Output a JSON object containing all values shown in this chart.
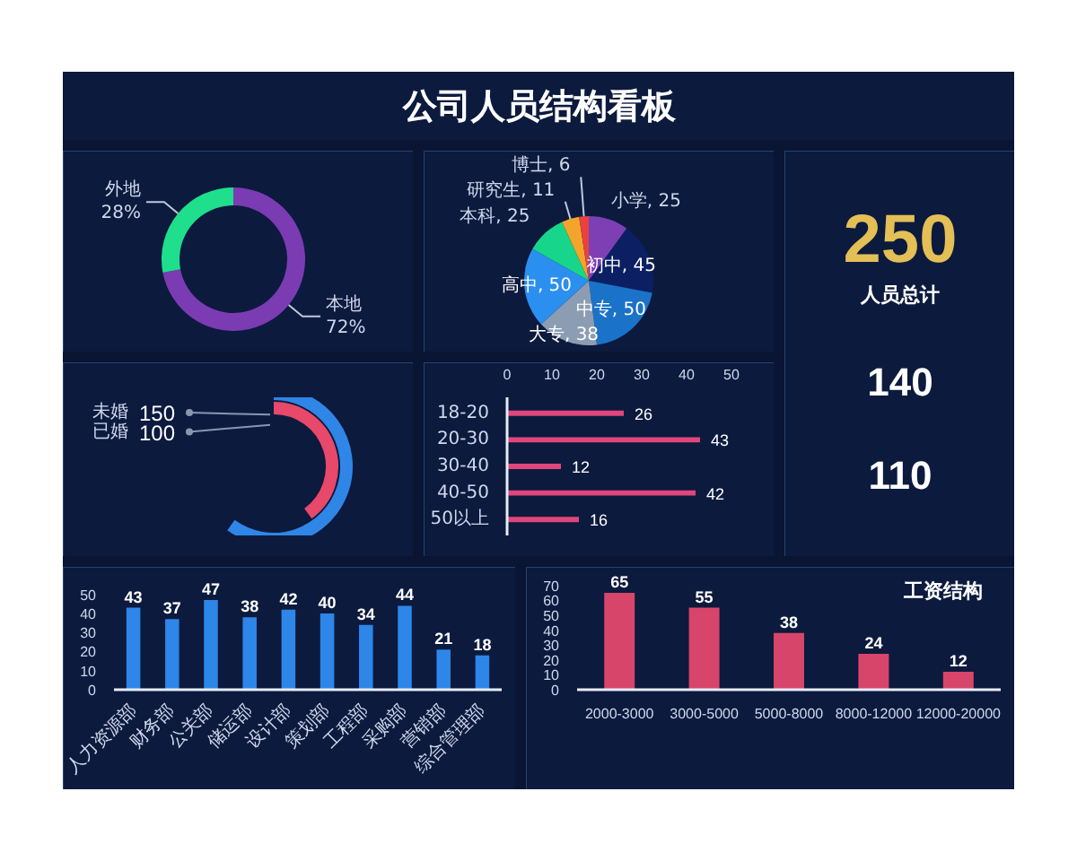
{
  "chart_data": [
    {
      "type": "other",
      "title": "公司人员结构看板"
    },
    {
      "type": "donut",
      "categories": [
        "本地",
        "外地"
      ],
      "values": [
        72,
        28
      ],
      "colors": [
        "#7b3bb3",
        "#1fdf8c"
      ],
      "value_labels": [
        "72%",
        "28%"
      ]
    },
    {
      "type": "pie",
      "categories": [
        "小学",
        "初中",
        "中专",
        "大专",
        "高中",
        "本科",
        "研究生",
        "博士"
      ],
      "values": [
        25,
        45,
        50,
        38,
        50,
        25,
        11,
        6
      ],
      "colors": [
        "#7e3fb5",
        "#0c1f63",
        "#1a73c8",
        "#8c9db3",
        "#2b8ff0",
        "#17d68b",
        "#f3a52b",
        "#e8423f"
      ],
      "value_labels": [
        ", 25",
        ", 45",
        ", 50",
        ", 38",
        ", 50",
        ", 25",
        ", 11",
        ", 6"
      ]
    },
    {
      "type": "other",
      "categories": [
        "人员总计",
        null,
        null
      ],
      "values": [
        250,
        140,
        110
      ],
      "data_labels": true
    },
    {
      "type": "other",
      "categories": [
        "未婚",
        "已婚"
      ],
      "values": [
        150,
        100
      ],
      "data_labels": true
    },
    {
      "type": "bar",
      "orientation": "horizontal",
      "categories": [
        "18-20",
        "20-30",
        "30-40",
        "40-50",
        "50以上"
      ],
      "values": [
        26,
        43,
        12,
        42,
        16
      ],
      "color": "#e0467c",
      "xlim": [
        0,
        50
      ],
      "xticks": [
        0,
        10,
        20,
        30,
        40,
        50
      ],
      "data_labels": true
    },
    {
      "type": "bar",
      "categories": [
        "人力资源部",
        "财务部",
        "公关部",
        "储运部",
        "设计部",
        "策划部",
        "工程部",
        "采购部",
        "营销部",
        "综合管理部"
      ],
      "values": [
        43,
        37,
        47,
        38,
        42,
        40,
        34,
        44,
        21,
        18
      ],
      "color": "#2d86e8",
      "ylim": [
        0,
        50
      ],
      "yticks": [
        0,
        10,
        20,
        30,
        40,
        50
      ],
      "data_labels": true
    },
    {
      "type": "bar",
      "title": "工资结构",
      "categories": [
        "2000-3000",
        "3000-5000",
        "5000-8000",
        "8000-12000",
        "12000-20000"
      ],
      "values": [
        65,
        55,
        38,
        24,
        12
      ],
      "color": "#d8456a",
      "ylim": [
        0,
        70
      ],
      "yticks": [
        0,
        10,
        20,
        30,
        40,
        50,
        60,
        70
      ],
      "data_labels": true
    }
  ]
}
